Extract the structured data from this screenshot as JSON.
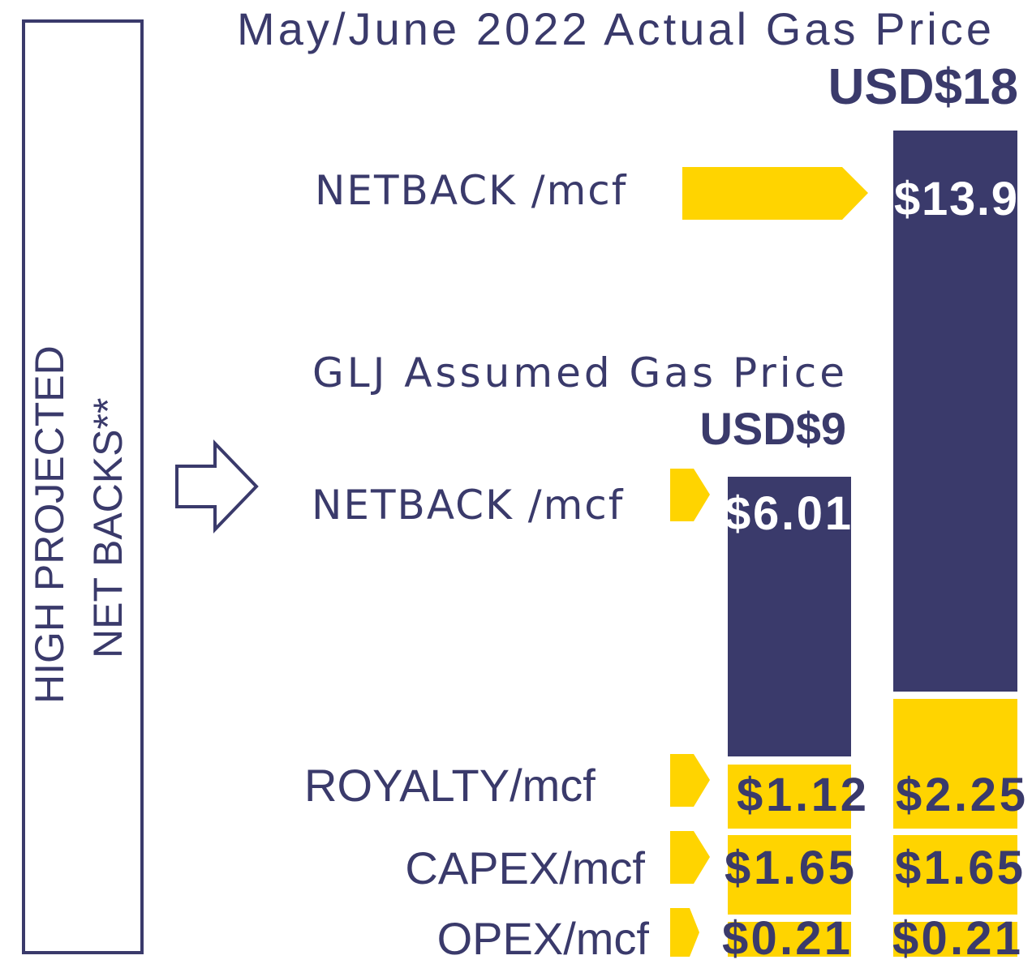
{
  "side_label": {
    "line1": "HIGH PROJECTED",
    "line2": "NET BACKS**"
  },
  "actual": {
    "title": "May/June 2022 Actual Gas Price",
    "price": "USD$18",
    "netback_label": "NETBACK /mcf",
    "netback": "$13.9",
    "royalty": "$2.25",
    "capex": "$1.65",
    "opex": "$0.21"
  },
  "assumed": {
    "title": "GLJ Assumed Gas Price",
    "price": "USD$9",
    "netback_label": "NETBACK /mcf",
    "netback": "$6.01",
    "royalty": "$1.12",
    "capex": "$1.65",
    "opex": "$0.21"
  },
  "rows": {
    "royalty": "ROYALTY/mcf",
    "capex": "CAPEX/mcf",
    "opex": "OPEX/mcf"
  }
}
